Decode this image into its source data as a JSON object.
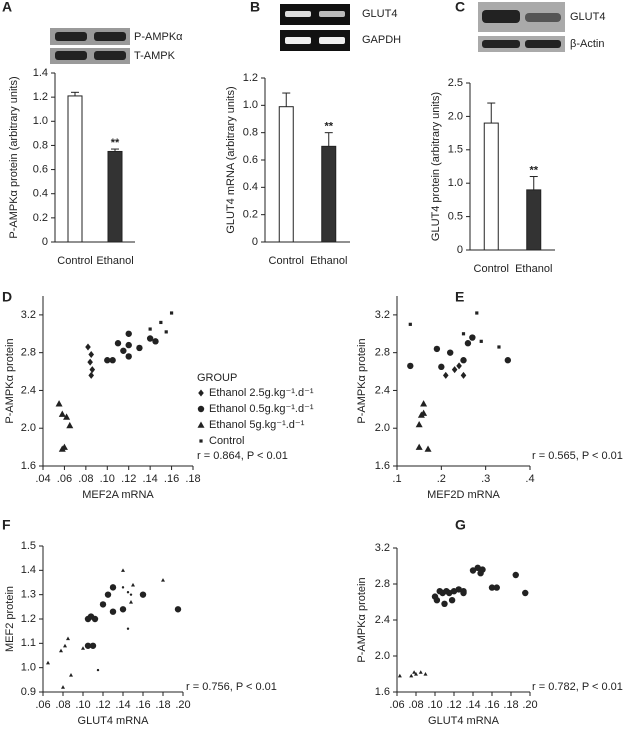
{
  "chart_data": [
    {
      "type": "bar",
      "panel_label": "A",
      "blot_labels": [
        "P-AMPKα",
        "T-AMPK"
      ],
      "ylabel": "P-AMPKα protein (arbitrary units)",
      "categories": [
        "Control",
        "Ethanol"
      ],
      "values": [
        1.21,
        0.75
      ],
      "errors": [
        0.03,
        0.02
      ],
      "colors": [
        "#ffffff",
        "#333333"
      ],
      "ylim": [
        0,
        1.4
      ],
      "yticks": [
        0,
        0.2,
        0.4,
        0.6,
        0.8,
        {
          "value": 1,
          "label": "1.0"
        },
        1.2,
        1.4
      ],
      "annotation": "**",
      "grid": false
    },
    {
      "type": "bar",
      "panel_label": "B",
      "blot_labels": [
        "GLUT4",
        "GAPDH"
      ],
      "ylabel": "GLUT4 mRNA (arbitrary units)",
      "categories": [
        "Control",
        "Ethanol"
      ],
      "values": [
        0.99,
        0.7
      ],
      "errors": [
        0.1,
        0.1
      ],
      "colors": [
        "#ffffff",
        "#333333"
      ],
      "ylim": [
        0,
        1.2
      ],
      "yticks": [
        0,
        0.2,
        0.4,
        0.6,
        0.8,
        {
          "value": 1,
          "label": "1.0"
        },
        1.2
      ],
      "annotation": "**",
      "grid": false
    },
    {
      "type": "bar",
      "panel_label": "C",
      "blot_labels": [
        "GLUT4",
        "β-Actin"
      ],
      "ylabel": "GLUT4 protein (arbitrary units)",
      "categories": [
        "Control",
        "Ethanol"
      ],
      "values": [
        1.9,
        0.9
      ],
      "errors": [
        0.3,
        0.2
      ],
      "colors": [
        "#ffffff",
        "#333333"
      ],
      "ylim": [
        0,
        2.5
      ],
      "yticks": [
        0,
        0.5,
        {
          "value": 1,
          "label": "1.0"
        },
        1.5,
        {
          "value": 2,
          "label": "2.0"
        },
        2.5
      ],
      "annotation": "**",
      "grid": false
    },
    {
      "type": "scatter",
      "panel_label": "D",
      "xlabel": "MEF2A mRNA",
      "ylabel": "P-AMPKα protein",
      "xlim": [
        0.04,
        0.18
      ],
      "xticks": [
        {
          "value": 0.04,
          "label": ".04"
        },
        {
          "value": 0.06,
          "label": ".06"
        },
        {
          "value": 0.08,
          "label": ".08"
        },
        {
          "value": 0.1,
          "label": ".10"
        },
        {
          "value": 0.12,
          "label": ".12"
        },
        {
          "value": 0.14,
          "label": ".14"
        },
        {
          "value": 0.16,
          "label": ".16"
        },
        {
          "value": 0.18,
          "label": ".18"
        }
      ],
      "ylim": [
        1.6,
        3.4
      ],
      "yticks": [
        1.6,
        {
          "value": 2,
          "label": "2.0"
        },
        2.4,
        2.8,
        3.2
      ],
      "legend_title": "GROUP",
      "annotation": "r = 0.864, P < 0.01",
      "series": [
        {
          "name": "Ethanol 2.5g.kg⁻¹.d⁻¹",
          "marker": "diamond",
          "color": "#222222",
          "x": [
            0.082,
            0.085,
            0.084,
            0.086,
            0.085
          ],
          "y": [
            2.86,
            2.78,
            2.7,
            2.62,
            2.56
          ]
        },
        {
          "name": "Ethanol 0.5g.kg⁻¹.d⁻¹",
          "marker": "circle",
          "color": "#222222",
          "x": [
            0.1,
            0.105,
            0.11,
            0.115,
            0.12,
            0.12,
            0.12,
            0.13,
            0.14,
            0.145
          ],
          "y": [
            2.72,
            2.72,
            2.9,
            2.82,
            2.76,
            2.88,
            3.0,
            2.85,
            2.95,
            2.92
          ]
        },
        {
          "name": "Ethanol 5g.kg⁻¹.d⁻¹",
          "marker": "triangle",
          "color": "#222222",
          "x": [
            0.055,
            0.058,
            0.062,
            0.06,
            0.058,
            0.065
          ],
          "y": [
            2.26,
            2.15,
            2.12,
            1.8,
            1.78,
            2.03
          ]
        },
        {
          "name": "Control",
          "marker": "square",
          "color": "#222222",
          "x": [
            0.14,
            0.15,
            0.155,
            0.16
          ],
          "y": [
            3.05,
            3.12,
            3.02,
            3.22
          ]
        }
      ]
    },
    {
      "type": "scatter",
      "panel_label": "E",
      "xlabel": "MEF2D mRNA",
      "ylabel": "P-AMPKα protein",
      "xlim": [
        0.1,
        0.4
      ],
      "xticks": [
        {
          "value": 0.1,
          "label": ".1"
        },
        {
          "value": 0.2,
          "label": ".2"
        },
        {
          "value": 0.3,
          "label": ".3"
        },
        {
          "value": 0.4,
          "label": ".4"
        }
      ],
      "ylim": [
        1.6,
        3.4
      ],
      "yticks": [
        1.6,
        {
          "value": 2,
          "label": "2.0"
        },
        2.4,
        2.8,
        3.2
      ],
      "annotation": "r = 0.565, P < 0.01",
      "series": [
        {
          "marker": "diamond",
          "color": "#222222",
          "x": [
            0.21,
            0.24,
            0.25,
            0.23
          ],
          "y": [
            2.56,
            2.66,
            2.56,
            2.62
          ]
        },
        {
          "marker": "circle",
          "color": "#222222",
          "x": [
            0.13,
            0.19,
            0.22,
            0.25,
            0.26,
            0.27,
            0.35,
            0.2
          ],
          "y": [
            2.66,
            2.84,
            2.8,
            2.72,
            2.9,
            2.96,
            2.72,
            2.65
          ]
        },
        {
          "marker": "triangle",
          "color": "#222222",
          "x": [
            0.15,
            0.16,
            0.16,
            0.15,
            0.17,
            0.155
          ],
          "y": [
            2.04,
            2.26,
            2.16,
            1.8,
            1.78,
            2.14
          ]
        },
        {
          "marker": "square",
          "color": "#222222",
          "x": [
            0.13,
            0.25,
            0.28,
            0.29,
            0.33
          ],
          "y": [
            3.1,
            3.0,
            3.22,
            2.92,
            2.86
          ]
        }
      ]
    },
    {
      "type": "scatter",
      "panel_label": "F",
      "xlabel": "GLUT4 mRNA",
      "ylabel": "MEF2 protein",
      "xlim": [
        0.06,
        0.2
      ],
      "xticks": [
        {
          "value": 0.06,
          "label": ".06"
        },
        {
          "value": 0.08,
          "label": ".08"
        },
        {
          "value": 0.1,
          "label": ".10"
        },
        {
          "value": 0.12,
          "label": ".12"
        },
        {
          "value": 0.14,
          "label": ".14"
        },
        {
          "value": 0.16,
          "label": ".16"
        },
        {
          "value": 0.18,
          "label": ".18"
        },
        {
          "value": 0.2,
          "label": ".20"
        }
      ],
      "ylim": [
        0.9,
        1.5
      ],
      "yticks": [
        0.9,
        {
          "value": 1,
          "label": "1.0"
        },
        1.1,
        1.2,
        1.3,
        1.4,
        1.5
      ],
      "annotation": "r = 0.756, P < 0.01",
      "series": [
        {
          "marker": "smalltriangle",
          "color": "#222222",
          "x": [
            0.065,
            0.078,
            0.082,
            0.085,
            0.08,
            0.088,
            0.1,
            0.14,
            0.148,
            0.15,
            0.18
          ],
          "y": [
            1.02,
            1.07,
            1.09,
            1.12,
            0.92,
            0.97,
            1.08,
            1.4,
            1.27,
            1.34,
            1.36
          ]
        },
        {
          "marker": "circle",
          "color": "#222222",
          "x": [
            0.105,
            0.105,
            0.11,
            0.108,
            0.112,
            0.12,
            0.125,
            0.13,
            0.13,
            0.16,
            0.195,
            0.14
          ],
          "y": [
            1.09,
            1.2,
            1.09,
            1.21,
            1.2,
            1.26,
            1.3,
            1.23,
            1.33,
            1.3,
            1.24,
            1.24
          ]
        },
        {
          "marker": "dot",
          "color": "#222222",
          "x": [
            0.115,
            0.14,
            0.145,
            0.148,
            0.145
          ],
          "y": [
            0.99,
            1.33,
            1.16,
            1.3,
            1.31
          ]
        }
      ]
    },
    {
      "type": "scatter",
      "panel_label": "G",
      "xlabel": "GLUT4 mRNA",
      "ylabel": "P-AMPKα protein",
      "xlim": [
        0.06,
        0.2
      ],
      "xticks": [
        {
          "value": 0.06,
          "label": ".06"
        },
        {
          "value": 0.08,
          "label": ".08"
        },
        {
          "value": 0.1,
          "label": ".10"
        },
        {
          "value": 0.12,
          "label": ".12"
        },
        {
          "value": 0.14,
          "label": ".14"
        },
        {
          "value": 0.16,
          "label": ".16"
        },
        {
          "value": 0.18,
          "label": ".18"
        },
        {
          "value": 0.2,
          "label": ".20"
        }
      ],
      "ylim": [
        1.6,
        3.2
      ],
      "yticks": [
        1.6,
        {
          "value": 2,
          "label": "2.0"
        },
        2.4,
        2.8,
        3.2
      ],
      "annotation": "r = 0.782, P < 0.01",
      "series": [
        {
          "marker": "smalltriangle",
          "color": "#222222",
          "x": [
            0.063,
            0.075,
            0.08,
            0.085,
            0.09,
            0.078
          ],
          "y": [
            1.78,
            1.78,
            1.8,
            1.82,
            1.8,
            1.82
          ]
        },
        {
          "marker": "circle",
          "color": "#222222",
          "x": [
            0.1,
            0.102,
            0.105,
            0.108,
            0.11,
            0.112,
            0.115,
            0.118,
            0.12,
            0.125,
            0.13,
            0.13,
            0.14,
            0.145,
            0.148,
            0.15,
            0.165,
            0.185,
            0.195,
            0.16
          ],
          "y": [
            2.66,
            2.62,
            2.72,
            2.7,
            2.58,
            2.72,
            2.7,
            2.62,
            2.72,
            2.74,
            2.7,
            2.72,
            2.95,
            2.98,
            2.92,
            2.96,
            2.76,
            2.9,
            2.7,
            2.76
          ]
        }
      ]
    }
  ]
}
